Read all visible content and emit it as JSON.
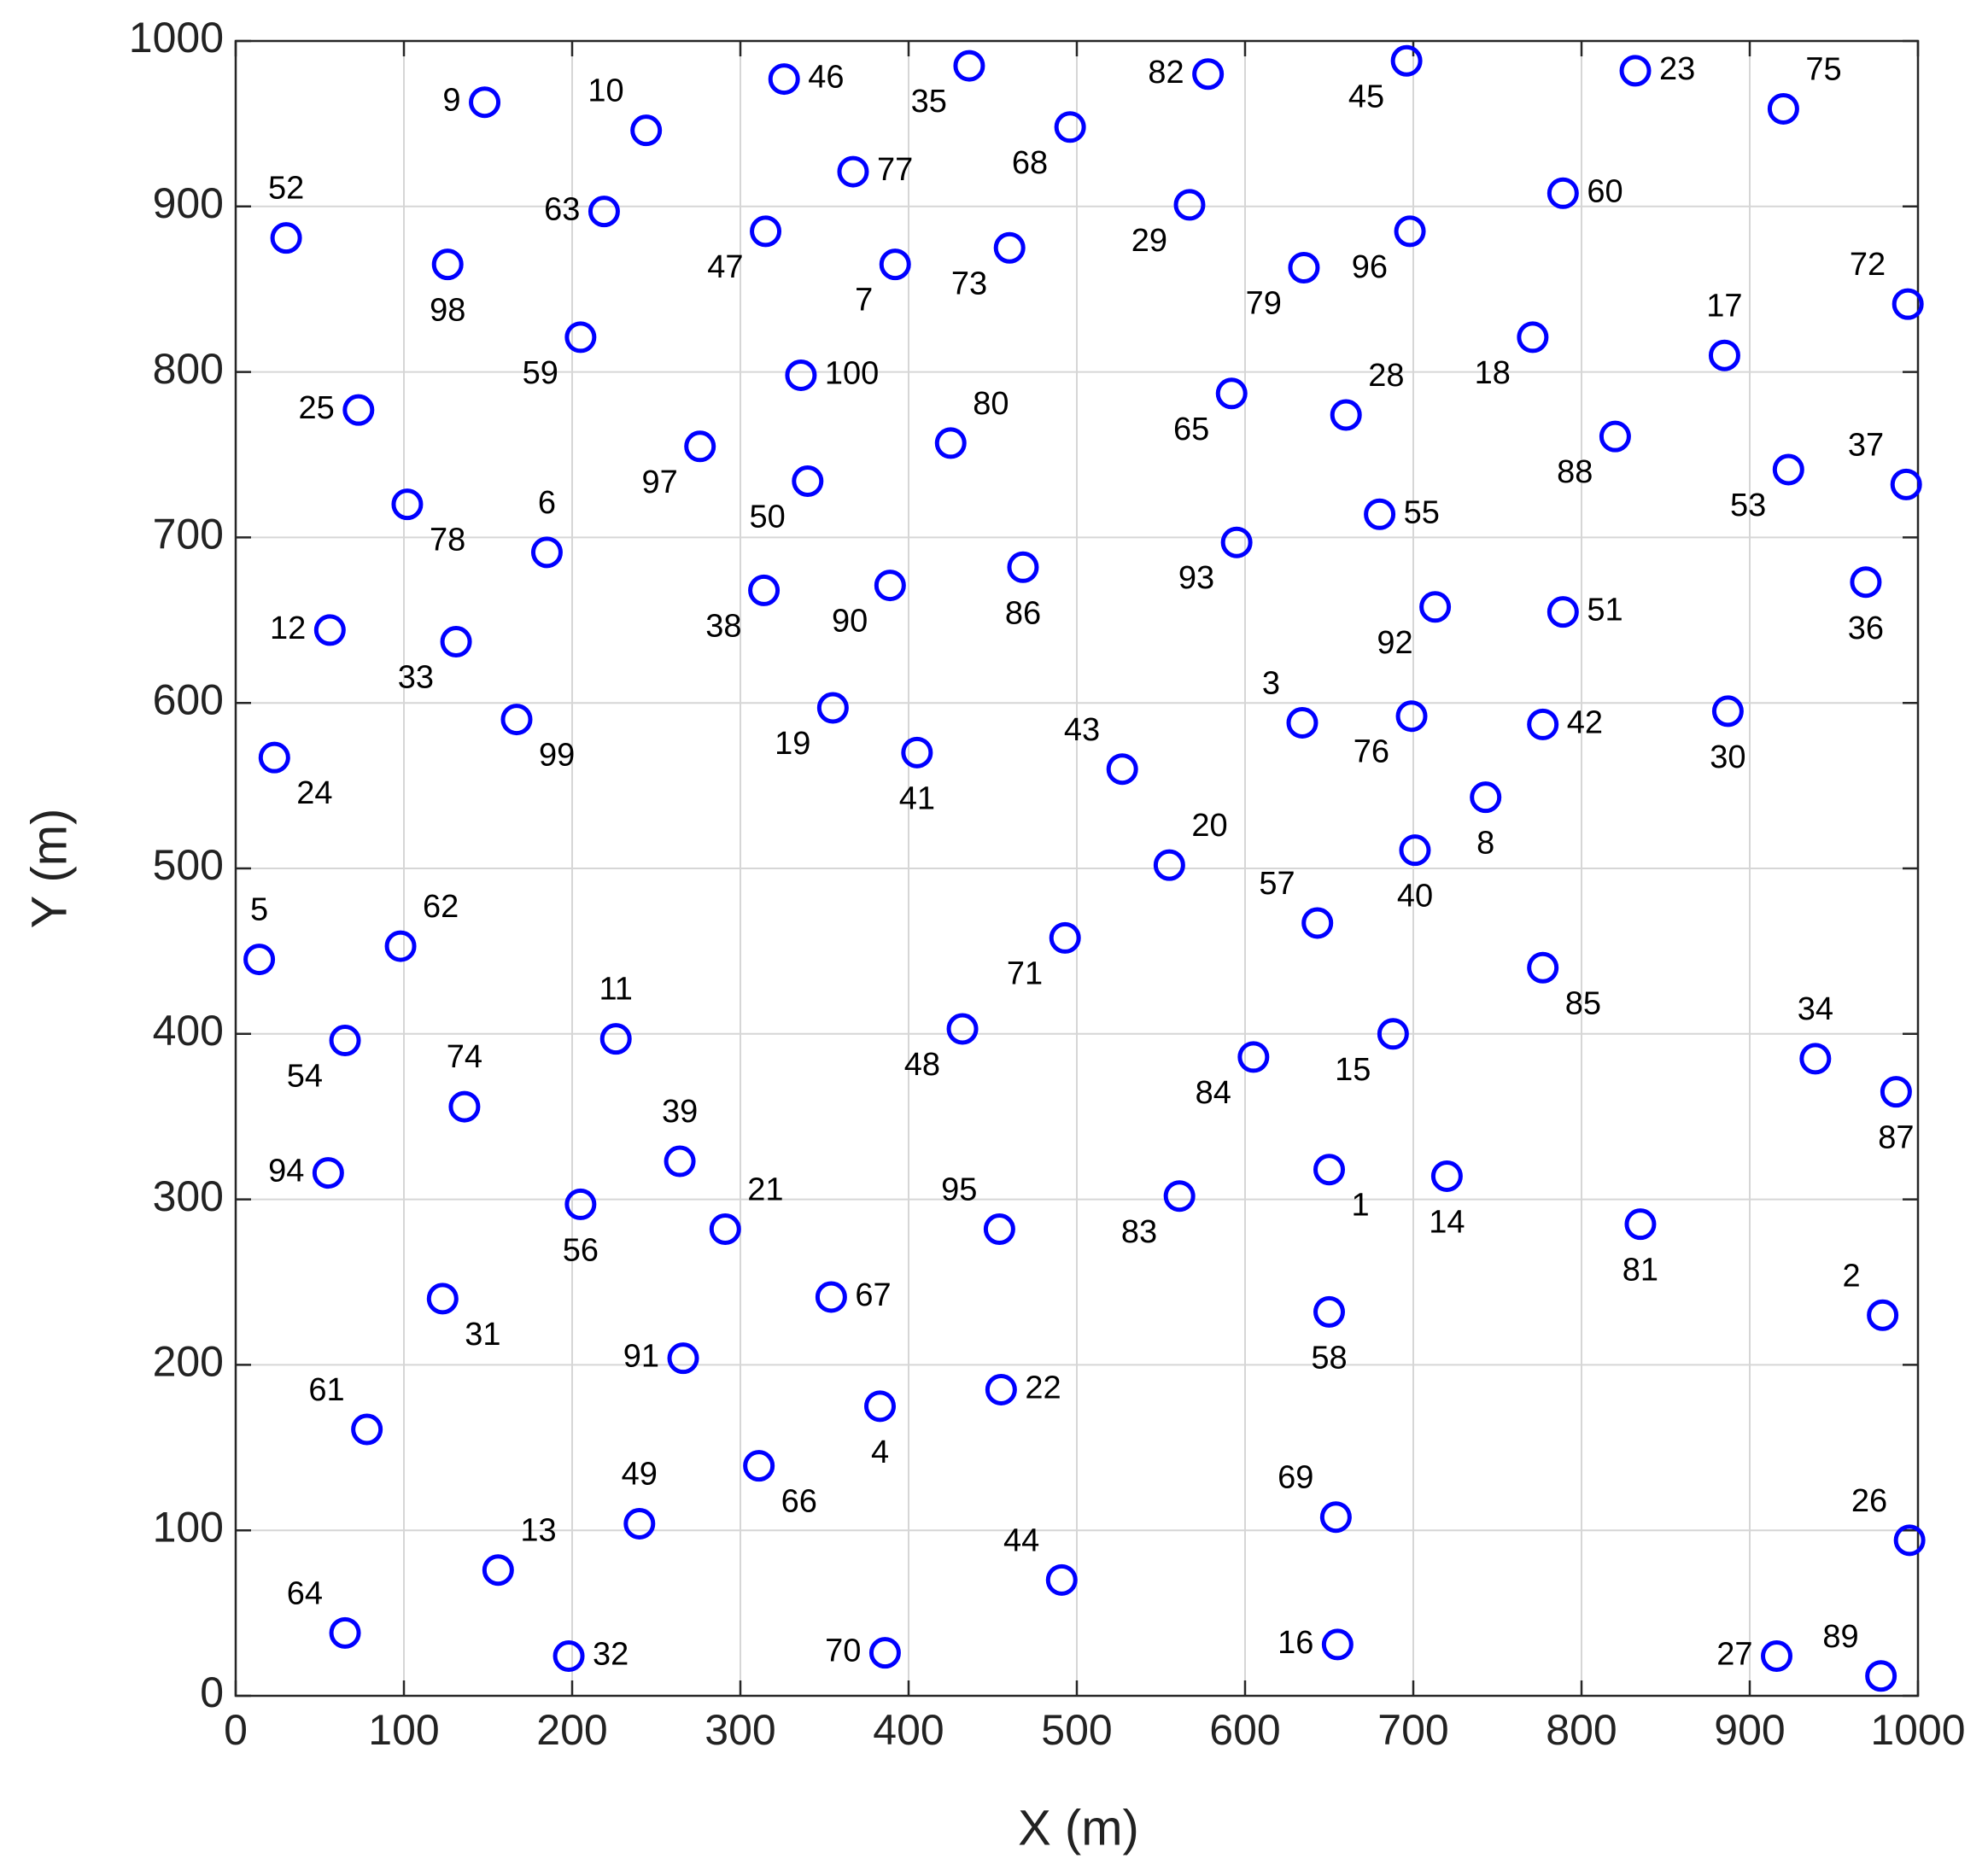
{
  "chart_data": {
    "type": "scatter",
    "xlabel": "X (m)",
    "ylabel": "Y (m)",
    "xlim": [
      0,
      1000
    ],
    "ylim": [
      0,
      1000
    ],
    "xticks": [
      0,
      100,
      200,
      300,
      400,
      500,
      600,
      700,
      800,
      900,
      1000
    ],
    "yticks": [
      0,
      100,
      200,
      300,
      400,
      500,
      600,
      700,
      800,
      900,
      1000
    ],
    "grid": true,
    "series": [
      {
        "color": "#0000ff",
        "labels": [
          "1",
          "2",
          "3",
          "4",
          "5",
          "6",
          "7",
          "8",
          "9",
          "10",
          "11",
          "12",
          "13",
          "14",
          "15",
          "16",
          "17",
          "18",
          "19",
          "20",
          "21",
          "22",
          "23",
          "24",
          "25",
          "26",
          "27",
          "28",
          "29",
          "30",
          "31",
          "32",
          "33",
          "34",
          "35",
          "36",
          "37",
          "38",
          "39",
          "40",
          "41",
          "42",
          "43",
          "44",
          "45",
          "46",
          "47",
          "48",
          "49",
          "50",
          "51",
          "52",
          "53",
          "54",
          "55",
          "56",
          "57",
          "58",
          "59",
          "60",
          "61",
          "62",
          "63",
          "64",
          "65",
          "66",
          "67",
          "68",
          "69",
          "70",
          "71",
          "72",
          "73",
          "74",
          "75",
          "76",
          "77",
          "78",
          "79",
          "80",
          "81",
          "82",
          "83",
          "84",
          "85",
          "86",
          "87",
          "88",
          "89",
          "90",
          "91",
          "92",
          "93",
          "94",
          "95",
          "96",
          "97",
          "98",
          "99",
          "100"
        ],
        "x": [
          650,
          979,
          634,
          383,
          14,
          185,
          392,
          743,
          148,
          244,
          226,
          56,
          156,
          720,
          688,
          655,
          885,
          771,
          355,
          555,
          291,
          455,
          832,
          23,
          73,
          995,
          916,
          660,
          567,
          887,
          123,
          198,
          131,
          939,
          436,
          969,
          993,
          314,
          264,
          701,
          405,
          777,
          527,
          491,
          696,
          326,
          315,
          432,
          240,
          340,
          789,
          30,
          923,
          65,
          680,
          205,
          643,
          650,
          205,
          789,
          78,
          98,
          219,
          65,
          592,
          311,
          354,
          496,
          654,
          386,
          493,
          994,
          460,
          136,
          920,
          699,
          367,
          102,
          635,
          425,
          835,
          578,
          561,
          605,
          777,
          468,
          987,
          820,
          978,
          389,
          266,
          713,
          595,
          55,
          454,
          698,
          276,
          126,
          167,
          336
        ],
        "values": [
          318,
          230,
          588,
          175,
          445,
          691,
          865,
          543,
          963,
          946,
          397,
          644,
          76,
          314,
          400,
          31,
          810,
          821,
          597,
          502,
          282,
          185,
          982,
          567,
          777,
          94,
          24,
          774,
          901,
          595,
          240,
          24,
          637,
          385,
          985,
          673,
          732,
          668,
          323,
          511,
          570,
          587,
          560,
          70,
          988,
          977,
          885,
          403,
          104,
          734,
          655,
          881,
          741,
          396,
          714,
          297,
          467,
          232,
          821,
          908,
          161,
          453,
          897,
          38,
          787,
          139,
          241,
          948,
          108,
          26,
          458,
          841,
          875,
          356,
          959,
          592,
          921,
          720,
          863,
          757,
          285,
          980,
          302,
          386,
          440,
          682,
          365,
          761,
          12,
          671,
          204,
          658,
          697,
          316,
          282,
          885,
          755,
          865,
          590,
          798
        ]
      }
    ]
  }
}
